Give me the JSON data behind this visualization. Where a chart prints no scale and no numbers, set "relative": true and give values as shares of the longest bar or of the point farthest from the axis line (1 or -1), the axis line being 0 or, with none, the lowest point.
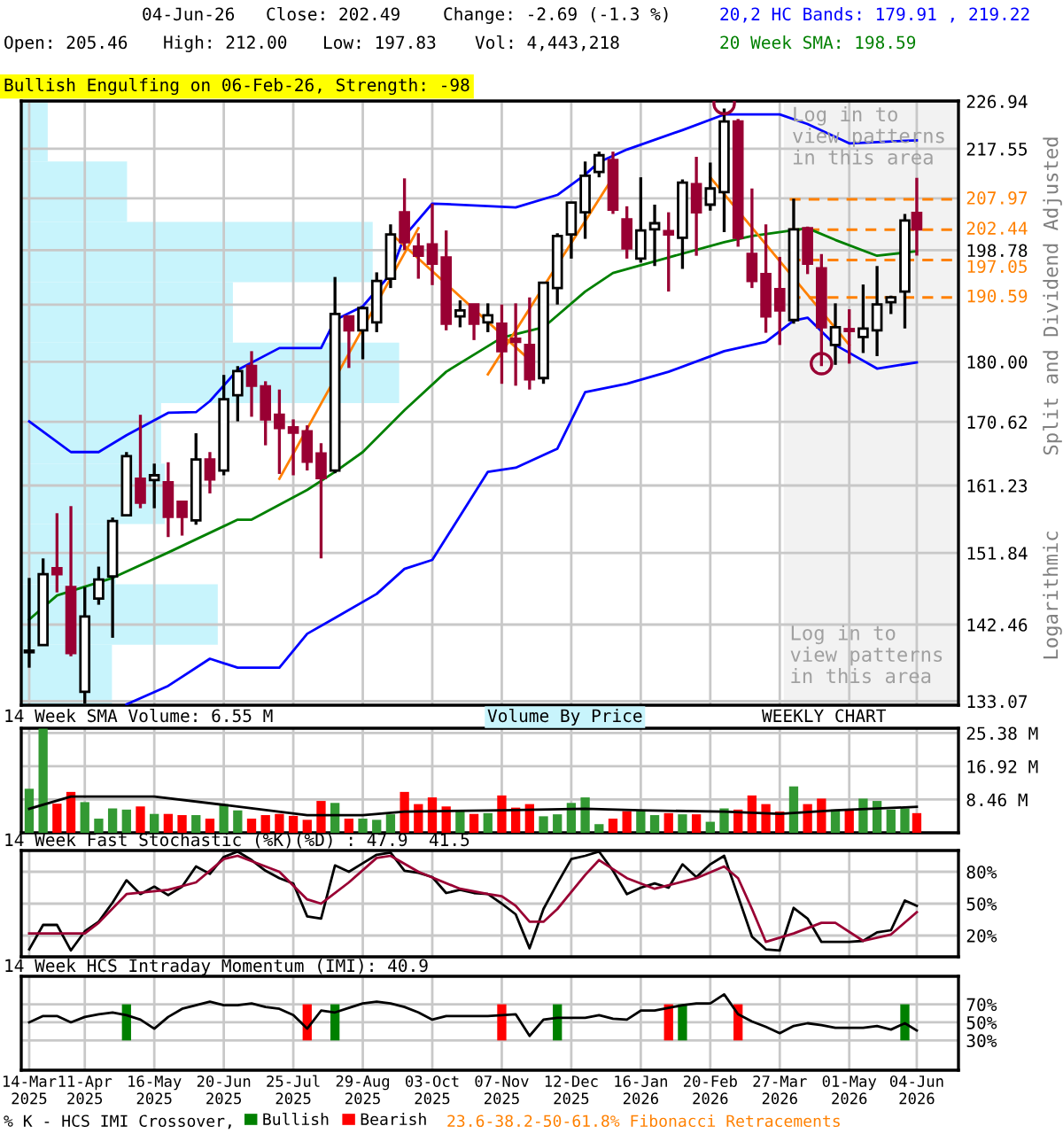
{
  "chart_data": [
    {
      "type": "candlestick",
      "x": [
        "2025-03-14",
        "2025-03-21",
        "2025-03-28",
        "2025-04-04",
        "2025-04-11",
        "2025-04-18",
        "2025-04-25",
        "2025-05-02",
        "2025-05-09",
        "2025-05-16",
        "2025-05-23",
        "2025-05-30",
        "2025-06-06",
        "2025-06-13",
        "2025-06-20",
        "2025-06-27",
        "2025-07-04",
        "2025-07-11",
        "2025-07-18",
        "2025-07-25",
        "2025-08-01",
        "2025-08-08",
        "2025-08-15",
        "2025-08-22",
        "2025-08-29",
        "2025-09-05",
        "2025-09-12",
        "2025-09-19",
        "2025-09-26",
        "2025-10-03",
        "2025-10-10",
        "2025-10-17",
        "2025-10-24",
        "2025-10-31",
        "2025-11-07",
        "2025-11-14",
        "2025-11-21",
        "2025-11-28",
        "2025-12-05",
        "2025-12-12",
        "2025-12-19",
        "2025-12-26",
        "2026-01-02",
        "2026-01-09",
        "2026-01-16",
        "2026-01-23",
        "2026-01-30",
        "2026-02-06",
        "2026-02-13",
        "2026-02-20",
        "2026-02-27",
        "2026-03-06",
        "2026-03-13",
        "2026-03-20",
        "2026-03-27",
        "2026-04-03",
        "2026-04-10",
        "2026-04-17",
        "2026-04-24",
        "2026-05-01",
        "2026-05-08",
        "2026-05-15",
        "2026-05-22",
        "2026-05-29",
        "2026-06-04"
      ],
      "ohlc": [
        [
          139.0,
          148.5,
          137.1,
          139.2
        ],
        [
          139.9,
          151.1,
          139.9,
          149.0
        ],
        [
          149.8,
          157.3,
          146.6,
          149.0
        ],
        [
          147.3,
          158.3,
          138.5,
          138.9
        ],
        [
          134.2,
          147.3,
          132.8,
          143.5
        ],
        [
          145.8,
          150.0,
          145.0,
          148.3
        ],
        [
          148.7,
          156.7,
          140.8,
          156.2
        ],
        [
          157.0,
          166.1,
          157.0,
          165.5
        ],
        [
          162.2,
          171.7,
          158.0,
          158.8
        ],
        [
          162.0,
          164.4,
          158.0,
          162.7
        ],
        [
          161.7,
          164.6,
          154.0,
          156.8
        ],
        [
          158.9,
          158.9,
          154.2,
          156.8
        ],
        [
          156.3,
          168.9,
          155.7,
          165.0
        ],
        [
          165.0,
          166.1,
          160.1,
          162.1
        ],
        [
          163.4,
          177.9,
          162.7,
          174.1
        ],
        [
          174.7,
          179.3,
          170.7,
          178.5
        ],
        [
          179.3,
          181.7,
          171.4,
          176.2
        ],
        [
          176.1,
          176.9,
          167.1,
          171.0
        ],
        [
          171.7,
          175.6,
          162.9,
          169.7
        ],
        [
          169.8,
          171.0,
          162.7,
          169.0
        ],
        [
          169.2,
          170.1,
          163.4,
          164.7
        ],
        [
          165.9,
          167.4,
          151.1,
          162.3
        ],
        [
          163.4,
          194.1,
          163.0,
          187.8
        ],
        [
          187.4,
          187.4,
          179.0,
          185.1
        ],
        [
          185.1,
          189.1,
          180.4,
          188.8
        ],
        [
          186.4,
          194.9,
          184.8,
          193.4
        ],
        [
          193.8,
          203.4,
          192.2,
          201.6
        ],
        [
          205.6,
          211.9,
          198.8,
          200.2
        ],
        [
          199.4,
          201.8,
          193.8,
          197.8
        ],
        [
          199.8,
          207.2,
          192.7,
          196.4
        ],
        [
          197.5,
          202.3,
          185.1,
          186.2
        ],
        [
          187.4,
          190.1,
          185.6,
          188.4
        ],
        [
          189.4,
          189.4,
          183.5,
          186.2
        ],
        [
          186.4,
          189.6,
          184.8,
          187.6
        ],
        [
          186.2,
          189.4,
          176.5,
          181.7
        ],
        [
          183.7,
          189.6,
          176.2,
          183.2
        ],
        [
          182.7,
          190.6,
          175.6,
          177.2
        ],
        [
          177.4,
          193.1,
          176.5,
          193.1
        ],
        [
          192.2,
          201.8,
          189.4,
          201.3
        ],
        [
          201.6,
          207.4,
          197.3,
          207.4
        ],
        [
          205.6,
          215.1,
          200.8,
          212.4
        ],
        [
          213.1,
          217.0,
          212.1,
          216.3
        ],
        [
          215.4,
          217.0,
          205.3,
          206.1
        ],
        [
          204.3,
          206.7,
          197.3,
          199.1
        ],
        [
          197.3,
          212.1,
          196.6,
          202.3
        ],
        [
          202.5,
          207.0,
          196.0,
          203.6
        ],
        [
          202.2,
          205.6,
          191.6,
          201.6
        ],
        [
          201.0,
          211.7,
          195.5,
          211.1
        ],
        [
          210.8,
          216.0,
          197.8,
          205.6
        ],
        [
          207.0,
          214.9,
          205.9,
          210.0
        ],
        [
          209.3,
          225.5,
          202.0,
          222.9
        ],
        [
          222.9,
          223.4,
          199.4,
          201.0
        ],
        [
          198.1,
          210.0,
          192.2,
          193.4
        ],
        [
          194.6,
          203.4,
          184.7,
          187.4
        ],
        [
          192.0,
          197.6,
          182.7,
          188.4
        ],
        [
          186.8,
          208.1,
          186.2,
          202.5
        ],
        [
          202.7,
          203.0,
          194.6,
          196.4
        ],
        [
          195.6,
          198.1,
          179.3,
          185.6
        ],
        [
          182.7,
          189.6,
          179.5,
          185.6
        ],
        [
          185.3,
          188.6,
          179.7,
          185.0
        ],
        [
          184.0,
          192.8,
          181.4,
          185.4
        ],
        [
          185.1,
          196.0,
          180.9,
          189.4
        ],
        [
          189.8,
          190.9,
          187.8,
          190.6
        ],
        [
          191.6,
          205.3,
          185.4,
          204.1
        ],
        [
          205.46,
          212.0,
          197.83,
          202.49
        ]
      ],
      "colors": [
        "#000000",
        "#000000",
        "#990033",
        "#990033",
        "#000000",
        "#000000",
        "#000000",
        "#000000",
        "#990033",
        "#000000",
        "#990033",
        "#990033",
        "#000000",
        "#990033",
        "#000000",
        "#000000",
        "#990033",
        "#990033",
        "#990033",
        "#990033",
        "#990033",
        "#990033",
        "#000000",
        "#990033",
        "#000000",
        "#000000",
        "#000000",
        "#990033",
        "#990033",
        "#990033",
        "#990033",
        "#000000",
        "#990033",
        "#000000",
        "#990033",
        "#990033",
        "#990033",
        "#000000",
        "#000000",
        "#000000",
        "#000000",
        "#000000",
        "#990033",
        "#990033",
        "#000000",
        "#000000",
        "#990033",
        "#000000",
        "#990033",
        "#000000",
        "#000000",
        "#990033",
        "#990033",
        "#990033",
        "#990033",
        "#000000",
        "#990033",
        "#990033",
        "#000000",
        "#990033",
        "#000000",
        "#000000",
        "#000000",
        "#000000",
        "#990033"
      ],
      "series": [
        {
          "type": "line",
          "color": "#0000ff",
          "x": [
            "2025-03-14",
            "2025-04-04",
            "2025-04-18",
            "2025-05-02",
            "2025-05-23",
            "2025-06-06",
            "2025-06-13",
            "2025-06-27",
            "2025-07-18",
            "2025-08-08",
            "2025-08-15",
            "2025-08-29",
            "2025-09-12",
            "2025-09-19",
            "2025-10-03",
            "2025-10-10",
            "2025-11-14",
            "2025-12-05",
            "2025-12-19",
            "2025-12-26",
            "2026-01-09",
            "2026-02-06",
            "2026-02-27",
            "2026-03-27",
            "2026-04-10",
            "2026-05-01",
            "2026-06-04"
          ],
          "values": [
            170.7,
            166.1,
            166.1,
            168.6,
            172.0,
            172.1,
            173.8,
            178.7,
            182.2,
            182.2,
            186.8,
            189.1,
            194.6,
            201.3,
            207.2,
            207.1,
            206.5,
            208.8,
            212.6,
            215.0,
            217.4,
            221.2,
            224.3,
            224.3,
            222.4,
            218.6,
            219.2
          ]
        },
        {
          "type": "line",
          "color": "#0000ff",
          "x": [
            "2025-05-02",
            "2025-05-23",
            "2025-06-13",
            "2025-06-27",
            "2025-07-18",
            "2025-08-01",
            "2025-08-15",
            "2025-09-05",
            "2025-09-19",
            "2025-10-03",
            "2025-10-31",
            "2025-11-14",
            "2025-12-05",
            "2025-12-19",
            "2026-01-09",
            "2026-01-30",
            "2026-02-27",
            "2026-03-20",
            "2026-04-03",
            "2026-04-10",
            "2026-04-24",
            "2026-05-15",
            "2026-06-04"
          ],
          "values": [
            132.7,
            134.9,
            138.2,
            137.1,
            137.1,
            141.3,
            143.3,
            146.4,
            149.7,
            150.9,
            163.2,
            163.8,
            166.6,
            175.2,
            176.5,
            178.4,
            181.7,
            183.2,
            186.7,
            187.2,
            182.7,
            178.9,
            179.9
          ]
        },
        {
          "type": "line",
          "color": "#008000",
          "x": [
            "2025-03-14",
            "2025-03-28",
            "2025-04-25",
            "2025-05-23",
            "2025-06-27",
            "2025-07-04",
            "2025-08-01",
            "2025-08-15",
            "2025-08-29",
            "2025-09-19",
            "2025-10-10",
            "2025-11-07",
            "2025-11-28",
            "2025-12-19",
            "2026-01-02",
            "2026-01-30",
            "2026-02-27",
            "2026-03-13",
            "2026-04-10",
            "2026-04-24",
            "2026-05-15",
            "2026-06-04"
          ],
          "values": [
            143.1,
            146.2,
            148.5,
            151.9,
            156.4,
            156.4,
            160.6,
            163.2,
            166.1,
            172.4,
            178.4,
            183.9,
            185.6,
            191.6,
            194.8,
            197.5,
            200.2,
            201.3,
            202.7,
            200.6,
            197.8,
            198.6
          ]
        },
        {
          "type": "line",
          "color": "#ff8000",
          "x": [
            "2025-07-18",
            "2025-09-26"
          ],
          "values": [
            162.2,
            202.7
          ]
        },
        {
          "type": "line",
          "color": "#ff8000",
          "x": [
            "2025-09-12",
            "2025-11-21"
          ],
          "values": [
            201.8,
            180.3
          ]
        },
        {
          "type": "line",
          "color": "#ff8000",
          "x": [
            "2025-10-31",
            "2026-01-02"
          ],
          "values": [
            178.0,
            212.1
          ]
        },
        {
          "type": "line",
          "color": "#ff8000",
          "x": [
            "2026-02-20",
            "2026-05-01"
          ],
          "values": [
            212.1,
            182.7
          ]
        },
        {
          "type": "scatter",
          "marker": "circle",
          "color": "#990033",
          "x": [
            "2026-02-27",
            "2026-04-17"
          ],
          "values": [
            226.5,
            179.7
          ]
        }
      ],
      "xlim": [
        "2025-03-10",
        "2026-06-25"
      ],
      "xticks": [
        {
          "value": "2025-03-14",
          "label": null
        },
        {
          "value": "2025-04-11",
          "label": null
        },
        {
          "value": "2025-05-16",
          "label": null
        },
        {
          "value": "2025-06-20",
          "label": null
        },
        {
          "value": "2025-07-25",
          "label": null
        },
        {
          "value": "2025-08-29",
          "label": null
        },
        {
          "value": "2025-10-03",
          "label": null
        },
        {
          "value": "2025-11-07",
          "label": null
        },
        {
          "value": "2025-12-12",
          "label": null
        },
        {
          "value": "2026-01-16",
          "label": null
        },
        {
          "value": "2026-02-20",
          "label": null
        },
        {
          "value": "2026-03-27",
          "label": null
        },
        {
          "value": "2026-05-01",
          "label": null
        },
        {
          "value": "2026-06-04",
          "label": null
        }
      ],
      "ylim": [
        132.6,
        227.0
      ],
      "log": true,
      "yticks": [
        226.94,
        217.55,
        {
          "value": 208.16,
          "label": null
        },
        198.78,
        {
          "value": 189.39,
          "label": null
        },
        {
          "value": 180.0,
          "label": "180.00"
        },
        170.62,
        161.23,
        151.84,
        142.46,
        133.07
      ],
      "tick_labels": "y",
      "grid": true,
      "bands": [
        {
          "axis": "x",
          "from": "2026-03-29",
          "to": "2026-06-25",
          "color": "#f2f2f2",
          "label": "Log in to\nview patterns\nin this area"
        }
      ],
      "ref_lines": [
        {
          "axis": "y",
          "value": 207.97,
          "label": "207.97",
          "color": "#ff8000",
          "line_style": "dashed"
        },
        {
          "axis": "y",
          "value": 202.44,
          "label": "202.44",
          "color": "#ff8000",
          "line_style": "dashed"
        },
        {
          "axis": "y",
          "value": 197.05,
          "label": "197.05",
          "color": "#ff8000",
          "line_style": "dashed"
        },
        {
          "axis": "y",
          "value": 190.59,
          "label": "190.59",
          "color": "#ff8000",
          "line_style": "dashed"
        }
      ],
      "annotations": [
        "04-Jun-26",
        "Close: 202.49",
        "Change: -2.69 (-1.3 %)",
        "Open: 205.46",
        "High: 212.00",
        "Low: 197.83",
        "Vol: 4,443,218",
        "20,2 HC Bands: 179.91 , 219.22",
        "20 Week SMA: 198.59",
        "Bullish Engulfing on 06-Feb-26, Strength: -98",
        "Log in to\nview patterns\nin this area",
        "Split and Dividend Adjusted",
        "Logarithmic"
      ]
    },
    {
      "type": "bar",
      "orientation": "horizontal",
      "relative": true,
      "tick_labels": false,
      "color": "#c8f4fc",
      "categories": [
        null,
        null,
        null,
        null,
        null,
        null,
        null,
        null,
        null,
        null
      ],
      "values": [
        0.07,
        0.28,
        0.93,
        0.56,
        1,
        0.37,
        0.38,
        0.25,
        0.52,
        0.24
      ]
    },
    {
      "type": "bar",
      "title": "14 Week SMA Volume: 6.55 M",
      "x": [
        "2025-03-14",
        "2025-03-21",
        "2025-03-28",
        "2025-04-04",
        "2025-04-11",
        "2025-04-18",
        "2025-04-25",
        "2025-05-02",
        "2025-05-09",
        "2025-05-16",
        "2025-05-23",
        "2025-05-30",
        "2025-06-06",
        "2025-06-13",
        "2025-06-20",
        "2025-06-27",
        "2025-07-04",
        "2025-07-11",
        "2025-07-18",
        "2025-07-25",
        "2025-08-01",
        "2025-08-08",
        "2025-08-15",
        "2025-08-22",
        "2025-08-29",
        "2025-09-05",
        "2025-09-12",
        "2025-09-19",
        "2025-09-26",
        "2025-10-03",
        "2025-10-10",
        "2025-10-17",
        "2025-10-24",
        "2025-10-31",
        "2025-11-07",
        "2025-11-14",
        "2025-11-21",
        "2025-11-28",
        "2025-12-05",
        "2025-12-12",
        "2025-12-19",
        "2025-12-26",
        "2026-01-02",
        "2026-01-09",
        "2026-01-16",
        "2026-01-23",
        "2026-01-30",
        "2026-02-06",
        "2026-02-13",
        "2026-02-20",
        "2026-02-27",
        "2026-03-06",
        "2026-03-13",
        "2026-03-20",
        "2026-03-27",
        "2026-04-03",
        "2026-04-10",
        "2026-04-17",
        "2026-04-24",
        "2026-05-01",
        "2026-05-08",
        "2026-05-15",
        "2026-05-22",
        "2026-05-29",
        "2026-06-04"
      ],
      "series": [
        {
          "type": "bar",
          "values": [
            11.2,
            26.5,
            7.4,
            10.4,
            7.8,
            3.6,
            6.2,
            5.9,
            6.7,
            4.8,
            4.8,
            4.5,
            4.5,
            3.6,
            7.3,
            5.7,
            3.6,
            4.5,
            4.8,
            4.3,
            3.3,
            8.1,
            7.6,
            3.6,
            3.6,
            3.3,
            4.7,
            10.4,
            7.3,
            9.0,
            6.7,
            5.5,
            4.8,
            5.0,
            9.5,
            6.4,
            7.3,
            4.2,
            4.7,
            7.6,
            9.0,
            2.2,
            3.6,
            5.5,
            5.5,
            4.5,
            5.0,
            4.7,
            4.7,
            2.8,
            6.2,
            5.9,
            9.5,
            7.3,
            5.4,
            11.8,
            7.3,
            8.7,
            5.9,
            5.9,
            8.7,
            8.1,
            5.9,
            6.2,
            5.0
          ],
          "colors": [
            "#339933",
            "#339933",
            "#ff0000",
            "#ff0000",
            "#339933",
            "#339933",
            "#339933",
            "#339933",
            "#ff0000",
            "#339933",
            "#ff0000",
            "#ff0000",
            "#339933",
            "#ff0000",
            "#339933",
            "#339933",
            "#ff0000",
            "#ff0000",
            "#ff0000",
            "#ff0000",
            "#ff0000",
            "#ff0000",
            "#339933",
            "#ff0000",
            "#339933",
            "#339933",
            "#339933",
            "#ff0000",
            "#ff0000",
            "#ff0000",
            "#ff0000",
            "#339933",
            "#ff0000",
            "#339933",
            "#ff0000",
            "#ff0000",
            "#ff0000",
            "#339933",
            "#339933",
            "#339933",
            "#339933",
            "#339933",
            "#ff0000",
            "#ff0000",
            "#339933",
            "#339933",
            "#ff0000",
            "#339933",
            "#ff0000",
            "#339933",
            "#339933",
            "#ff0000",
            "#ff0000",
            "#ff0000",
            "#ff0000",
            "#339933",
            "#ff0000",
            "#ff0000",
            "#339933",
            "#ff0000",
            "#339933",
            "#339933",
            "#339933",
            "#339933",
            "#ff0000"
          ]
        },
        {
          "type": "line",
          "color": "#000000",
          "x": [
            "2025-03-14",
            "2025-04-04",
            "2025-04-18",
            "2025-05-16",
            "2025-06-20",
            "2025-08-01",
            "2025-08-29",
            "2025-09-19",
            "2025-11-07",
            "2025-12-19",
            "2026-01-16",
            "2026-02-27",
            "2026-03-27",
            "2026-04-24",
            "2026-06-04"
          ],
          "values": [
            6.1,
            9.2,
            9.2,
            9.2,
            7.1,
            4.5,
            4.5,
            5.4,
            5.7,
            6.1,
            5.7,
            5.4,
            4.8,
            5.7,
            6.6
          ]
        }
      ],
      "xlim": [
        "2025-03-10",
        "2026-06-25"
      ],
      "xticks": [
        {
          "value": "2025-03-14",
          "label": null
        },
        {
          "value": "2025-04-11",
          "label": null
        },
        {
          "value": "2025-05-16",
          "label": null
        },
        {
          "value": "2025-06-20",
          "label": null
        },
        {
          "value": "2025-07-25",
          "label": null
        },
        {
          "value": "2025-08-29",
          "label": null
        },
        {
          "value": "2025-10-03",
          "label": null
        },
        {
          "value": "2025-11-07",
          "label": null
        },
        {
          "value": "2025-12-12",
          "label": null
        },
        {
          "value": "2026-01-16",
          "label": null
        },
        {
          "value": "2026-02-20",
          "label": null
        },
        {
          "value": "2026-03-27",
          "label": null
        },
        {
          "value": "2026-05-01",
          "label": null
        },
        {
          "value": "2026-06-04",
          "label": null
        }
      ],
      "ylim": [
        0,
        26.6
      ],
      "yticks": [
        {
          "value": 8.46,
          "label": "8.46 M"
        },
        {
          "value": 16.92,
          "label": "16.92 M"
        },
        {
          "value": 25.38,
          "label": "25.38 M"
        }
      ],
      "tick_labels": "y",
      "grid": true,
      "annotations": [
        "Volume By Price",
        "WEEKLY CHART"
      ]
    },
    {
      "type": "line",
      "title": "14 Week Fast Stochastic (%K)(%D) : 47.9  41.5",
      "x": [
        "2025-03-14",
        "2025-03-21",
        "2025-03-28",
        "2025-04-04",
        "2025-04-11",
        "2025-04-18",
        "2025-04-25",
        "2025-05-02",
        "2025-05-09",
        "2025-05-16",
        "2025-05-23",
        "2025-05-30",
        "2025-06-06",
        "2025-06-13",
        "2025-06-20",
        "2025-06-27",
        "2025-07-04",
        "2025-07-11",
        "2025-07-18",
        "2025-07-25",
        "2025-08-01",
        "2025-08-08",
        "2025-08-15",
        "2025-08-22",
        "2025-08-29",
        "2025-09-05",
        "2025-09-12",
        "2025-09-19",
        "2025-09-26",
        "2025-10-03",
        "2025-10-10",
        "2025-10-17",
        "2025-10-24",
        "2025-10-31",
        "2025-11-07",
        "2025-11-14",
        "2025-11-21",
        "2025-11-28",
        "2025-12-05",
        "2025-12-12",
        "2025-12-19",
        "2025-12-26",
        "2026-01-02",
        "2026-01-09",
        "2026-01-16",
        "2026-01-23",
        "2026-01-30",
        "2026-02-06",
        "2026-02-13",
        "2026-02-20",
        "2026-02-27",
        "2026-03-06",
        "2026-03-13",
        "2026-03-20",
        "2026-03-27",
        "2026-04-03",
        "2026-04-10",
        "2026-04-17",
        "2026-04-24",
        "2026-05-01",
        "2026-05-08",
        "2026-05-15",
        "2026-05-22",
        "2026-05-29",
        "2026-06-04"
      ],
      "series": [
        {
          "color": "#000000",
          "values": [
            7,
            30,
            30,
            6,
            24,
            33,
            51,
            72,
            59,
            66,
            58,
            66,
            85,
            78,
            94,
            99,
            91,
            81,
            74,
            69,
            38,
            36,
            86,
            80,
            88,
            96,
            98,
            81,
            79,
            75,
            60,
            63,
            60,
            59,
            50,
            40,
            8,
            45,
            69,
            92,
            95,
            99,
            81,
            59,
            65,
            69,
            65,
            87,
            75,
            87,
            95,
            57,
            19,
            7,
            6,
            46,
            36,
            14,
            14,
            14,
            15,
            23,
            25,
            53,
            48
          ]
        },
        {
          "color": "#990033",
          "x": [
            "2025-03-14",
            "2025-04-11",
            "2025-04-18",
            "2025-05-02",
            "2025-05-23",
            "2025-06-06",
            "2025-06-20",
            "2025-06-27",
            "2025-07-18",
            "2025-08-01",
            "2025-08-08",
            "2025-08-22",
            "2025-09-05",
            "2025-09-12",
            "2025-09-26",
            "2025-10-17",
            "2025-10-31",
            "2025-11-07",
            "2025-11-14",
            "2025-11-21",
            "2025-11-28",
            "2025-12-05",
            "2025-12-19",
            "2025-12-26",
            "2026-01-09",
            "2026-01-23",
            "2026-02-13",
            "2026-02-27",
            "2026-03-06",
            "2026-03-13",
            "2026-03-20",
            "2026-04-03",
            "2026-04-17",
            "2026-04-24",
            "2026-05-08",
            "2026-05-22",
            "2026-06-04"
          ],
          "values": [
            22,
            22,
            32,
            59,
            63,
            70,
            92,
            95,
            80,
            54,
            50,
            70,
            93,
            95,
            80,
            64,
            59,
            57,
            48,
            33,
            33,
            45,
            77,
            91,
            74,
            64,
            74,
            85,
            74,
            45,
            14,
            22,
            32,
            32,
            15,
            21,
            42
          ]
        }
      ],
      "xlim": [
        "2025-03-10",
        "2026-06-25"
      ],
      "xticks": [
        {
          "value": "2025-03-14",
          "label": null
        },
        {
          "value": "2025-04-11",
          "label": null
        },
        {
          "value": "2025-05-16",
          "label": null
        },
        {
          "value": "2025-06-20",
          "label": null
        },
        {
          "value": "2025-07-25",
          "label": null
        },
        {
          "value": "2025-08-29",
          "label": null
        },
        {
          "value": "2025-10-03",
          "label": null
        },
        {
          "value": "2025-11-07",
          "label": null
        },
        {
          "value": "2025-12-12",
          "label": null
        },
        {
          "value": "2026-01-16",
          "label": null
        },
        {
          "value": "2026-02-20",
          "label": null
        },
        {
          "value": "2026-03-27",
          "label": null
        },
        {
          "value": "2026-05-01",
          "label": null
        },
        {
          "value": "2026-06-04",
          "label": null
        }
      ],
      "ylim": [
        0,
        100
      ],
      "yticks": [
        {
          "value": 20,
          "label": "20%"
        },
        {
          "value": 50,
          "label": "50%"
        },
        {
          "value": 80,
          "label": "80%"
        }
      ],
      "tick_labels": "y",
      "grid": true
    },
    {
      "type": "line",
      "title": "14 Week HCS Intraday Momentum (IMI): 40.9",
      "x": [
        "2025-03-14",
        "2025-03-21",
        "2025-03-28",
        "2025-04-04",
        "2025-04-11",
        "2025-04-18",
        "2025-04-25",
        "2025-05-02",
        "2025-05-09",
        "2025-05-16",
        "2025-05-23",
        "2025-05-30",
        "2025-06-06",
        "2025-06-13",
        "2025-06-20",
        "2025-06-27",
        "2025-07-04",
        "2025-07-11",
        "2025-07-18",
        "2025-07-25",
        "2025-08-01",
        "2025-08-08",
        "2025-08-15",
        "2025-08-22",
        "2025-08-29",
        "2025-09-05",
        "2025-09-12",
        "2025-09-19",
        "2025-09-26",
        "2025-10-03",
        "2025-10-10",
        "2025-10-17",
        "2025-10-24",
        "2025-10-31",
        "2025-11-07",
        "2025-11-14",
        "2025-11-21",
        "2025-11-28",
        "2025-12-05",
        "2025-12-12",
        "2025-12-19",
        "2025-12-26",
        "2026-01-02",
        "2026-01-09",
        "2026-01-16",
        "2026-01-23",
        "2026-01-30",
        "2026-02-06",
        "2026-02-13",
        "2026-02-20",
        "2026-02-27",
        "2026-03-06",
        "2026-03-13",
        "2026-03-20",
        "2026-03-27",
        "2026-04-03",
        "2026-04-10",
        "2026-04-17",
        "2026-04-24",
        "2026-05-01",
        "2026-05-08",
        "2026-05-15",
        "2026-05-22",
        "2026-05-29",
        "2026-06-04"
      ],
      "series": [
        {
          "type": "bar",
          "name": "Bullish",
          "color": "#008000",
          "x": [
            "2025-05-02",
            "2025-08-15",
            "2025-12-05",
            "2026-02-06",
            "2026-05-29"
          ],
          "base": [
            30,
            30,
            30,
            30,
            30
          ],
          "values": [
            40,
            40,
            40,
            40,
            40
          ]
        },
        {
          "type": "bar",
          "name": "Bearish",
          "color": "#ff0000",
          "x": [
            "2025-08-01",
            "2025-11-07",
            "2026-01-30",
            "2026-03-06"
          ],
          "base": [
            30,
            30,
            30,
            30
          ],
          "values": [
            40,
            40,
            40,
            40
          ]
        },
        {
          "type": "line",
          "color": "#000000",
          "values": [
            50,
            57,
            57,
            50,
            56,
            59,
            61,
            58,
            53,
            43,
            56,
            65,
            69,
            73,
            69,
            69,
            71,
            67,
            65,
            58,
            43,
            63,
            61,
            66,
            71,
            73,
            71,
            67,
            61,
            53,
            57,
            57,
            57,
            57,
            58,
            59,
            35,
            53,
            55,
            55,
            55,
            58,
            54,
            53,
            63,
            63,
            66,
            69,
            71,
            71,
            81,
            59,
            51,
            45,
            38,
            46,
            49,
            47,
            44,
            44,
            44,
            46,
            42,
            49,
            41
          ]
        }
      ],
      "xlim": [
        "2025-03-10",
        "2026-06-25"
      ],
      "xticks": [
        {
          "value": "2025-03-14",
          "label": "14-Mar\n2025"
        },
        {
          "value": "2025-04-11",
          "label": "11-Apr\n2025"
        },
        {
          "value": "2025-05-16",
          "label": "16-May\n2025"
        },
        {
          "value": "2025-06-20",
          "label": "20-Jun\n2025"
        },
        {
          "value": "2025-07-25",
          "label": "25-Jul\n2025"
        },
        {
          "value": "2025-08-29",
          "label": "29-Aug\n2025"
        },
        {
          "value": "2025-10-03",
          "label": "03-Oct\n2025"
        },
        {
          "value": "2025-11-07",
          "label": "07-Nov\n2025"
        },
        {
          "value": "2025-12-12",
          "label": "12-Dec\n2025"
        },
        {
          "value": "2026-01-16",
          "label": "16-Jan\n2026"
        },
        {
          "value": "2026-02-20",
          "label": "20-Feb\n2026"
        },
        {
          "value": "2026-03-27",
          "label": "27-Mar\n2026"
        },
        {
          "value": "2026-05-01",
          "label": "01-May\n2026"
        },
        {
          "value": "2026-06-04",
          "label": "04-Jun\n2026"
        }
      ],
      "ylim": [
        -3,
        101
      ],
      "yticks": [
        {
          "value": 30,
          "label": "30%"
        },
        {
          "value": 50,
          "label": "50%"
        },
        {
          "value": 70,
          "label": "70%"
        }
      ],
      "grid": true,
      "legend": "bottom left",
      "annotations": [
        "% K - HCS IMI Crossover,",
        "23.6-38.2-50-61.8% Fibonacci Retracements"
      ]
    }
  ]
}
